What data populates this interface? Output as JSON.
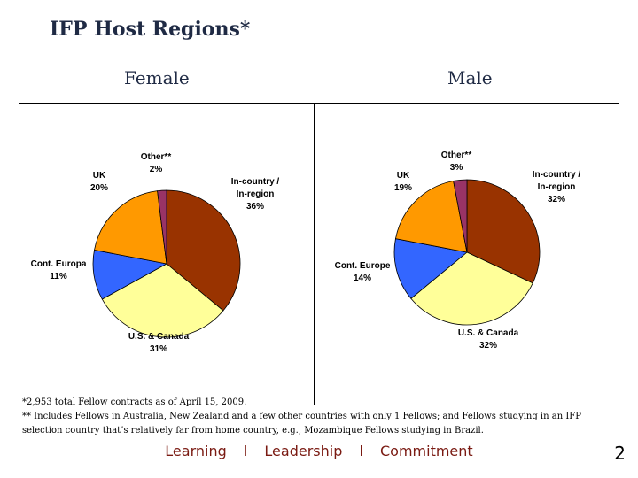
{
  "slide": {
    "title": "IFP Host Regions*",
    "footnote1": "*2,953 total Fellow contracts as of April 15, 2009.",
    "footnote2": "** Includes Fellows in Australia, New Zealand and a few other countries with only 1 Fellows; and Fellows studying in an IFP",
    "footnote3": "selection country that’s relatively far from home country, e.g., Mozambique Fellows studying in Brazil.",
    "tagline": [
      "Learning",
      "l",
      "Leadership",
      "l",
      "Commitment"
    ],
    "page_number": "2"
  },
  "colors": {
    "in_country": "#993300",
    "us_canada": "#ffff99",
    "cont_europe": "#3366ff",
    "uk": "#ff9900",
    "other": "#993366"
  },
  "chart_data": [
    {
      "type": "pie",
      "title": "Female",
      "slices": [
        {
          "label": [
            "In-country /",
            "In-region"
          ],
          "value": 36,
          "value_label": "36%",
          "color": "#993300"
        },
        {
          "label": [
            "U.S. & Canada"
          ],
          "value": 31,
          "value_label": "31%",
          "color": "#ffff99"
        },
        {
          "label": [
            "Cont. Europa"
          ],
          "value": 11,
          "value_label": "11%",
          "color": "#3366ff"
        },
        {
          "label": [
            "UK"
          ],
          "value": 20,
          "value_label": "20%",
          "color": "#ff9900"
        },
        {
          "label": [
            "Other**"
          ],
          "value": 2,
          "value_label": "2%",
          "color": "#993366"
        }
      ]
    },
    {
      "type": "pie",
      "title": "Male",
      "slices": [
        {
          "label": [
            "In-country /",
            "In-region"
          ],
          "value": 32,
          "value_label": "32%",
          "color": "#993300"
        },
        {
          "label": [
            "U.S. & Canada"
          ],
          "value": 32,
          "value_label": "32%",
          "color": "#ffff99"
        },
        {
          "label": [
            "Cont. Europe"
          ],
          "value": 14,
          "value_label": "14%",
          "color": "#3366ff"
        },
        {
          "label": [
            "UK"
          ],
          "value": 19,
          "value_label": "19%",
          "color": "#ff9900"
        },
        {
          "label": [
            "Other**"
          ],
          "value": 3,
          "value_label": "3%",
          "color": "#993366"
        }
      ]
    }
  ]
}
